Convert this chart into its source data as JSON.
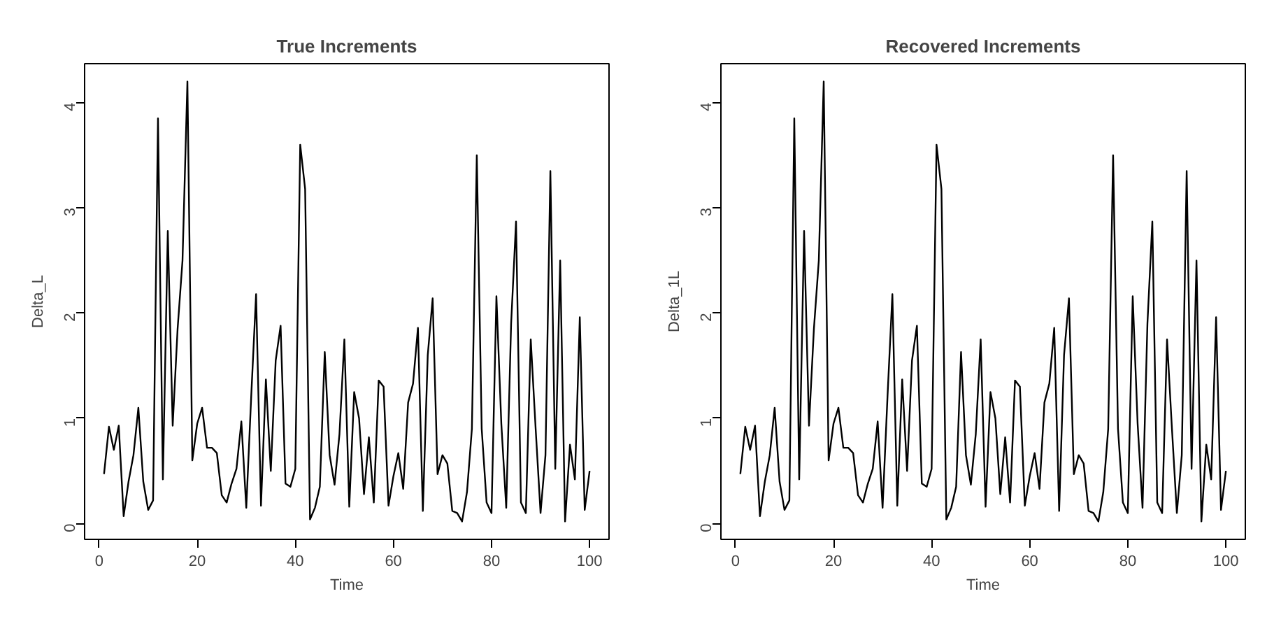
{
  "chart_data": [
    {
      "type": "line",
      "title": "True Increments",
      "xlabel": "Time",
      "ylabel": "Delta_L",
      "x": [
        1,
        2,
        3,
        4,
        5,
        6,
        7,
        8,
        9,
        10,
        11,
        12,
        13,
        14,
        15,
        16,
        17,
        18,
        19,
        20,
        21,
        22,
        23,
        24,
        25,
        26,
        27,
        28,
        29,
        30,
        31,
        32,
        33,
        34,
        35,
        36,
        37,
        38,
        39,
        40,
        41,
        42,
        43,
        44,
        45,
        46,
        47,
        48,
        49,
        50,
        51,
        52,
        53,
        54,
        55,
        56,
        57,
        58,
        59,
        60,
        61,
        62,
        63,
        64,
        65,
        66,
        67,
        68,
        69,
        70,
        71,
        72,
        73,
        74,
        75,
        76,
        77,
        78,
        79,
        80,
        81,
        82,
        83,
        84,
        85,
        86,
        87,
        88,
        89,
        90,
        91,
        92,
        93,
        94,
        95,
        96,
        97,
        98,
        99,
        100
      ],
      "series": [
        {
          "color": "#000000",
          "values": [
            0.47,
            0.92,
            0.7,
            0.93,
            0.07,
            0.4,
            0.65,
            1.1,
            0.4,
            0.13,
            0.22,
            3.85,
            0.42,
            2.78,
            0.93,
            1.85,
            2.5,
            4.2,
            0.6,
            0.95,
            1.1,
            0.72,
            0.72,
            0.67,
            0.27,
            0.2,
            0.38,
            0.52,
            0.97,
            0.15,
            1.2,
            2.18,
            0.17,
            1.37,
            0.5,
            1.55,
            1.88,
            0.38,
            0.35,
            0.52,
            3.6,
            3.18,
            0.04,
            0.15,
            0.35,
            1.63,
            0.65,
            0.37,
            0.85,
            1.75,
            0.16,
            1.25,
            1.0,
            0.28,
            0.82,
            0.2,
            1.36,
            1.3,
            0.17,
            0.45,
            0.67,
            0.33,
            1.15,
            1.33,
            1.86,
            0.12,
            1.6,
            2.14,
            0.47,
            0.65,
            0.57,
            0.12,
            0.1,
            0.02,
            0.3,
            0.9,
            3.5,
            0.9,
            0.2,
            0.1,
            2.16,
            0.95,
            0.15,
            1.9,
            2.87,
            0.2,
            0.1,
            1.75,
            0.9,
            0.1,
            0.65,
            3.35,
            0.52,
            2.5,
            0.02,
            0.75,
            0.42,
            1.96,
            0.13,
            0.5
          ]
        }
      ],
      "xlim": [
        -2.96,
        103.96
      ],
      "ylim": [
        -0.15,
        4.37
      ],
      "xticks": [
        0,
        20,
        40,
        60,
        80,
        100
      ],
      "yticks": [
        0,
        1,
        2,
        3,
        4
      ],
      "grid": false,
      "marker": "none",
      "line_style": "solid"
    },
    {
      "type": "line",
      "title": "Recovered Increments",
      "xlabel": "Time",
      "ylabel": "Delta_1L",
      "x": [
        1,
        2,
        3,
        4,
        5,
        6,
        7,
        8,
        9,
        10,
        11,
        12,
        13,
        14,
        15,
        16,
        17,
        18,
        19,
        20,
        21,
        22,
        23,
        24,
        25,
        26,
        27,
        28,
        29,
        30,
        31,
        32,
        33,
        34,
        35,
        36,
        37,
        38,
        39,
        40,
        41,
        42,
        43,
        44,
        45,
        46,
        47,
        48,
        49,
        50,
        51,
        52,
        53,
        54,
        55,
        56,
        57,
        58,
        59,
        60,
        61,
        62,
        63,
        64,
        65,
        66,
        67,
        68,
        69,
        70,
        71,
        72,
        73,
        74,
        75,
        76,
        77,
        78,
        79,
        80,
        81,
        82,
        83,
        84,
        85,
        86,
        87,
        88,
        89,
        90,
        91,
        92,
        93,
        94,
        95,
        96,
        97,
        98,
        99,
        100
      ],
      "series": [
        {
          "color": "#000000",
          "values": [
            0.47,
            0.92,
            0.7,
            0.93,
            0.07,
            0.4,
            0.65,
            1.1,
            0.4,
            0.13,
            0.22,
            3.85,
            0.42,
            2.78,
            0.93,
            1.85,
            2.5,
            4.2,
            0.6,
            0.95,
            1.1,
            0.72,
            0.72,
            0.67,
            0.27,
            0.2,
            0.38,
            0.52,
            0.97,
            0.15,
            1.2,
            2.18,
            0.17,
            1.37,
            0.5,
            1.55,
            1.88,
            0.38,
            0.35,
            0.52,
            3.6,
            3.18,
            0.04,
            0.15,
            0.35,
            1.63,
            0.65,
            0.37,
            0.85,
            1.75,
            0.16,
            1.25,
            1.0,
            0.28,
            0.82,
            0.2,
            1.36,
            1.3,
            0.17,
            0.45,
            0.67,
            0.33,
            1.15,
            1.33,
            1.86,
            0.12,
            1.6,
            2.14,
            0.47,
            0.65,
            0.57,
            0.12,
            0.1,
            0.02,
            0.3,
            0.9,
            3.5,
            0.9,
            0.2,
            0.1,
            2.16,
            0.95,
            0.15,
            1.9,
            2.87,
            0.2,
            0.1,
            1.75,
            0.9,
            0.1,
            0.65,
            3.35,
            0.52,
            2.5,
            0.02,
            0.75,
            0.42,
            1.96,
            0.13,
            0.5
          ]
        }
      ],
      "xlim": [
        -2.96,
        103.96
      ],
      "ylim": [
        -0.15,
        4.37
      ],
      "xticks": [
        0,
        20,
        40,
        60,
        80,
        100
      ],
      "yticks": [
        0,
        1,
        2,
        3,
        4
      ],
      "grid": false,
      "marker": "none",
      "line_style": "solid"
    }
  ]
}
